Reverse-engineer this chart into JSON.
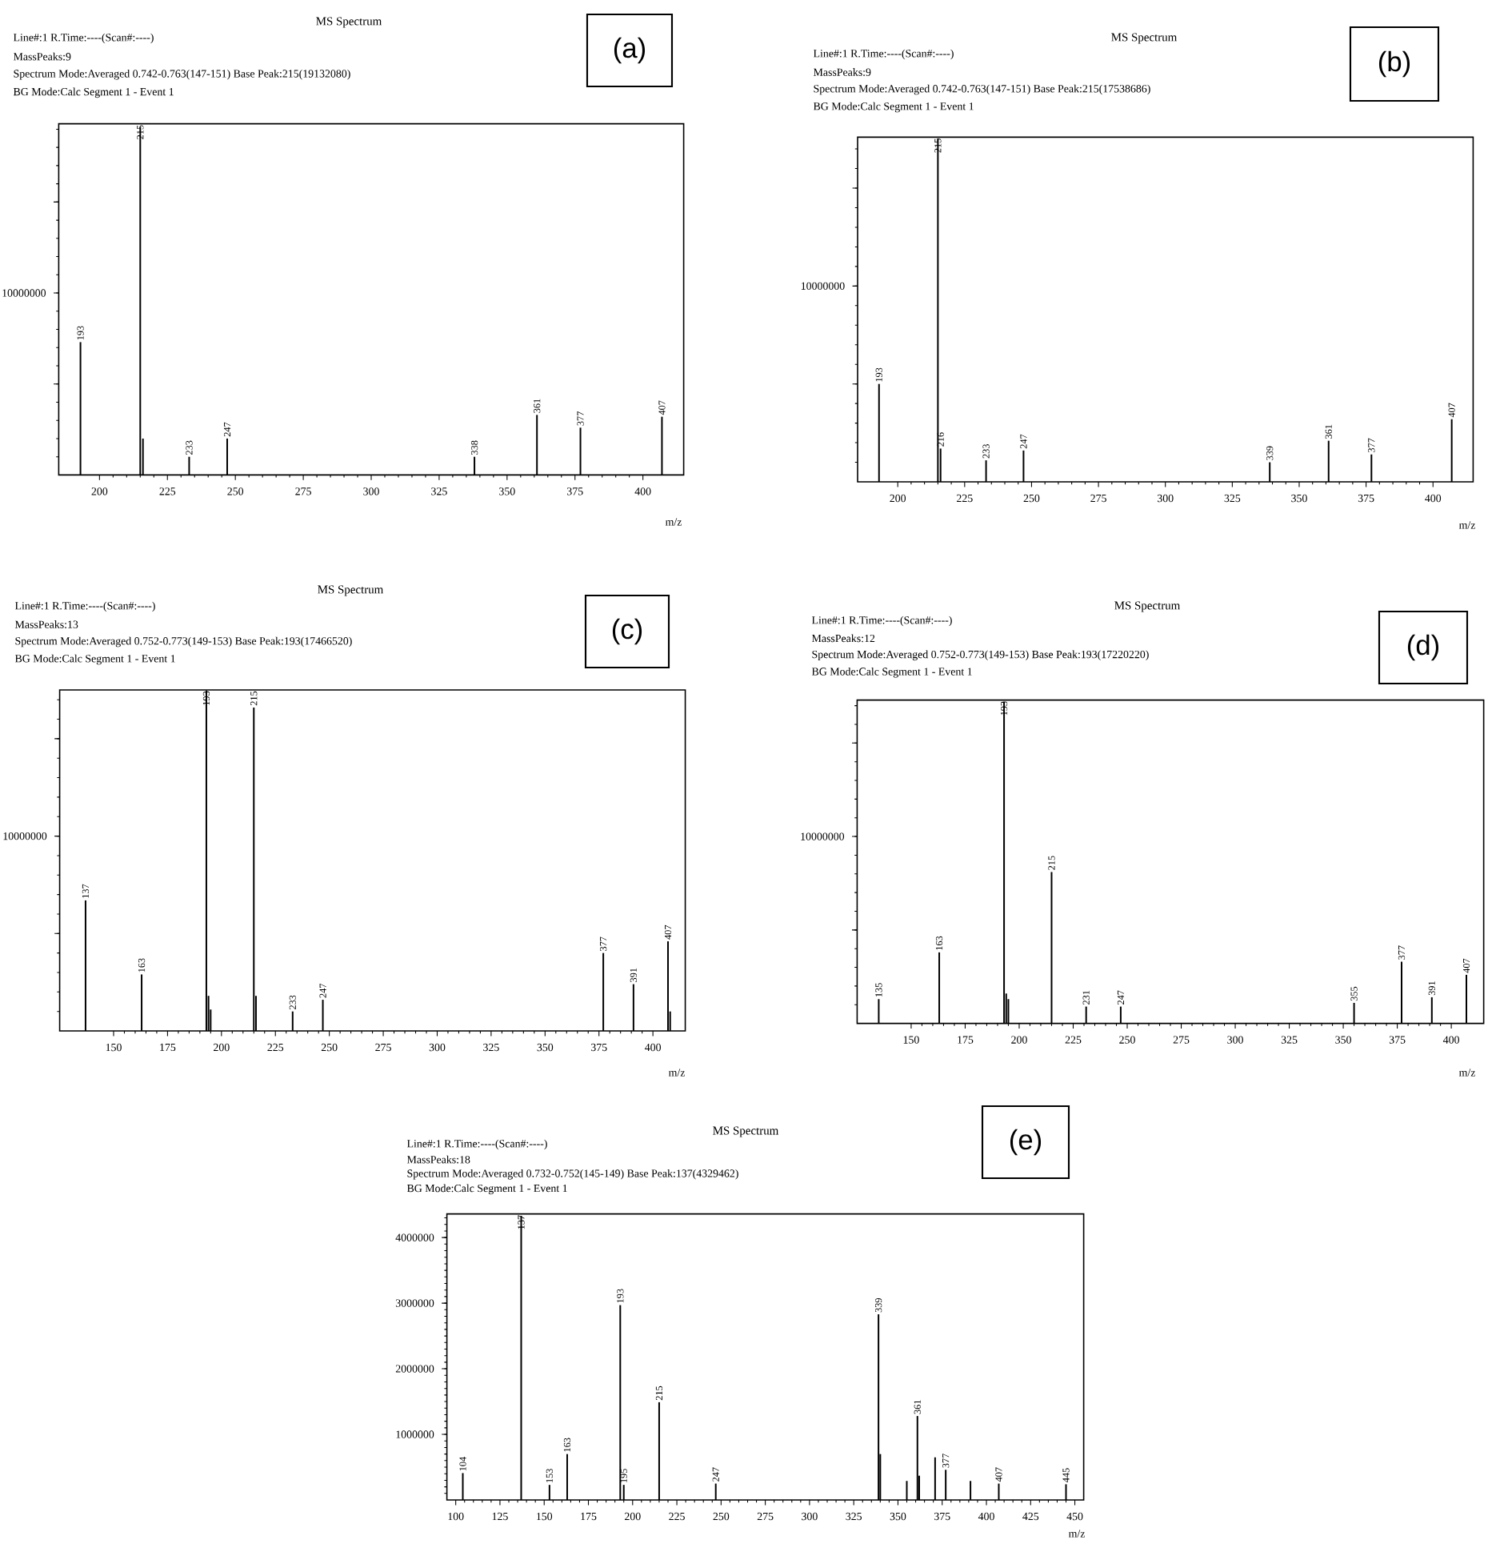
{
  "chart_data": [
    {
      "type": "bar",
      "title": "MS Spectrum",
      "xlabel": "m/z",
      "color": "#000000",
      "annotations": [
        "Line#:1 R.Time:----(Scan#:----)",
        "MassPeaks:9",
        "Spectrum Mode:Averaged 0.742-0.763(147-151) Base Peak:215(19132080)",
        "BG Mode:Calc Segment 1 - Event 1",
        "(a)",
        {
          "text": "193",
          "x": 193,
          "y": 7300000
        },
        {
          "text": "215",
          "x": 215,
          "y": 19132080
        },
        {
          "text": "233",
          "x": 233,
          "y": 1000000
        },
        {
          "text": "247",
          "x": 247,
          "y": 2000000
        },
        {
          "text": "338",
          "x": 338,
          "y": 1000000
        },
        {
          "text": "361",
          "x": 361,
          "y": 3300000
        },
        {
          "text": "377",
          "x": 377,
          "y": 2600000
        },
        {
          "text": "407",
          "x": 407,
          "y": 3200000
        }
      ],
      "x": [
        193,
        215,
        216,
        233,
        247,
        338,
        361,
        377,
        407
      ],
      "values": [
        7300000,
        19132080,
        2000000,
        1000000,
        2000000,
        1000000,
        3300000,
        2600000,
        3200000
      ],
      "xlim": [
        185,
        415
      ],
      "xticks": [
        200,
        225,
        250,
        275,
        300,
        325,
        350,
        375,
        400
      ],
      "ylim": [
        0,
        19300000
      ],
      "yticks": [
        {
          "value": 5000000,
          "label": null
        },
        {
          "value": 10000000,
          "label": "10000000"
        },
        {
          "value": 15000000,
          "label": null
        }
      ]
    },
    {
      "type": "bar",
      "title": "MS Spectrum",
      "xlabel": "m/z",
      "color": "#000000",
      "annotations": [
        "Line#:1 R.Time:----(Scan#:----)",
        "MassPeaks:9",
        "Spectrum Mode:Averaged 0.742-0.763(147-151) Base Peak:215(17538686)",
        "BG Mode:Calc Segment 1 - Event 1",
        "(b)",
        {
          "text": "193",
          "x": 193,
          "y": 5000000
        },
        {
          "text": "215",
          "x": 215,
          "y": 17538686
        },
        {
          "text": "216",
          "x": 216,
          "y": 1700000
        },
        {
          "text": "233",
          "x": 233,
          "y": 1100000
        },
        {
          "text": "247",
          "x": 247,
          "y": 1600000
        },
        {
          "text": "339",
          "x": 339,
          "y": 1000000
        },
        {
          "text": "361",
          "x": 361,
          "y": 2100000
        },
        {
          "text": "377",
          "x": 377,
          "y": 1400000
        },
        {
          "text": "407",
          "x": 407,
          "y": 3200000
        }
      ],
      "x": [
        193,
        215,
        216,
        233,
        247,
        339,
        361,
        377,
        407
      ],
      "values": [
        5000000,
        17538686,
        1700000,
        1100000,
        1600000,
        1000000,
        2100000,
        1400000,
        3200000
      ],
      "xlim": [
        185,
        415
      ],
      "xticks": [
        200,
        225,
        250,
        275,
        300,
        325,
        350,
        375,
        400
      ],
      "ylim": [
        0,
        17600000
      ],
      "yticks": [
        {
          "value": 5000000,
          "label": null
        },
        {
          "value": 10000000,
          "label": "10000000"
        },
        {
          "value": 15000000,
          "label": null
        }
      ]
    },
    {
      "type": "bar",
      "title": "MS Spectrum",
      "xlabel": "m/z",
      "color": "#000000",
      "annotations": [
        "Line#:1 R.Time:----(Scan#:----)",
        "MassPeaks:13",
        "Spectrum Mode:Averaged 0.752-0.773(149-153) Base Peak:193(17466520)",
        "BG Mode:Calc Segment 1 - Event 1",
        "(c)",
        {
          "text": "137",
          "x": 137,
          "y": 6700000
        },
        {
          "text": "163",
          "x": 163,
          "y": 2900000
        },
        {
          "text": "193",
          "x": 193,
          "y": 17466520
        },
        {
          "text": "215",
          "x": 215,
          "y": 16600000
        },
        {
          "text": "233",
          "x": 233,
          "y": 1000000
        },
        {
          "text": "247",
          "x": 247,
          "y": 1600000
        },
        {
          "text": "377",
          "x": 377,
          "y": 4000000
        },
        {
          "text": "391",
          "x": 391,
          "y": 2400000
        },
        {
          "text": "407",
          "x": 407,
          "y": 4600000
        }
      ],
      "x": [
        137,
        163,
        193,
        194,
        195,
        215,
        216,
        233,
        247,
        377,
        391,
        407,
        408
      ],
      "values": [
        6700000,
        2900000,
        17466520,
        1800000,
        1100000,
        16600000,
        1800000,
        1000000,
        1600000,
        4000000,
        2400000,
        4600000,
        1000000
      ],
      "xlim": [
        125,
        415
      ],
      "xticks": [
        150,
        175,
        200,
        225,
        250,
        275,
        300,
        325,
        350,
        375,
        400
      ],
      "ylim": [
        0,
        17500000
      ],
      "yticks": [
        {
          "value": 5000000,
          "label": null
        },
        {
          "value": 10000000,
          "label": "10000000"
        },
        {
          "value": 15000000,
          "label": null
        }
      ]
    },
    {
      "type": "bar",
      "title": "MS Spectrum",
      "xlabel": "m/z",
      "color": "#000000",
      "annotations": [
        "Line#:1 R.Time:----(Scan#:----)",
        "MassPeaks:12",
        "Spectrum Mode:Averaged 0.752-0.773(149-153) Base Peak:193(17220220)",
        "BG Mode:Calc Segment 1 - Event 1",
        "(d)",
        {
          "text": "135",
          "x": 135,
          "y": 1300000
        },
        {
          "text": "163",
          "x": 163,
          "y": 3800000
        },
        {
          "text": "193",
          "x": 193,
          "y": 17220220
        },
        {
          "text": "215",
          "x": 215,
          "y": 8100000
        },
        {
          "text": "231",
          "x": 231,
          "y": 900000
        },
        {
          "text": "247",
          "x": 247,
          "y": 900000
        },
        {
          "text": "355",
          "x": 355,
          "y": 1100000
        },
        {
          "text": "377",
          "x": 377,
          "y": 3300000
        },
        {
          "text": "391",
          "x": 391,
          "y": 1400000
        },
        {
          "text": "407",
          "x": 407,
          "y": 2600000
        }
      ],
      "x": [
        135,
        163,
        193,
        194,
        195,
        215,
        231,
        247,
        355,
        377,
        391,
        407
      ],
      "values": [
        1300000,
        3800000,
        17220220,
        1600000,
        1300000,
        8100000,
        900000,
        900000,
        1100000,
        3300000,
        1400000,
        2600000
      ],
      "xlim": [
        125,
        415
      ],
      "xticks": [
        150,
        175,
        200,
        225,
        250,
        275,
        300,
        325,
        350,
        375,
        400
      ],
      "ylim": [
        0,
        17300000
      ],
      "yticks": [
        {
          "value": 5000000,
          "label": null
        },
        {
          "value": 10000000,
          "label": "10000000"
        },
        {
          "value": 15000000,
          "label": null
        }
      ]
    },
    {
      "type": "bar",
      "title": "MS Spectrum",
      "xlabel": "m/z",
      "color": "#000000",
      "annotations": [
        "Line#:1 R.Time:----(Scan#:----)",
        "MassPeaks:18",
        "Spectrum Mode:Averaged 0.732-0.752(145-149) Base Peak:137(4329462)",
        "BG Mode:Calc Segment 1 - Event 1",
        "(e)",
        {
          "text": "104",
          "x": 104,
          "y": 410000
        },
        {
          "text": "137",
          "x": 137,
          "y": 4329462
        },
        {
          "text": "153",
          "x": 153,
          "y": 230000
        },
        {
          "text": "163",
          "x": 163,
          "y": 700000
        },
        {
          "text": "193",
          "x": 193,
          "y": 2970000
        },
        {
          "text": "195",
          "x": 195,
          "y": 230000
        },
        {
          "text": "215",
          "x": 215,
          "y": 1490000
        },
        {
          "text": "247",
          "x": 247,
          "y": 250000
        },
        {
          "text": "339",
          "x": 339,
          "y": 2830000
        },
        {
          "text": "361",
          "x": 361,
          "y": 1280000
        },
        {
          "text": "377",
          "x": 377,
          "y": 460000
        },
        {
          "text": "407",
          "x": 407,
          "y": 250000
        },
        {
          "text": "445",
          "x": 445,
          "y": 240000
        }
      ],
      "x": [
        104,
        137,
        153,
        163,
        193,
        195,
        215,
        247,
        339,
        340,
        355,
        361,
        362,
        371,
        377,
        391,
        407,
        445
      ],
      "values": [
        410000,
        4329462,
        230000,
        700000,
        2970000,
        230000,
        1490000,
        250000,
        2830000,
        700000,
        290000,
        1280000,
        370000,
        650000,
        460000,
        290000,
        250000,
        240000
      ],
      "xlim": [
        95,
        455
      ],
      "xticks": [
        100,
        125,
        150,
        175,
        200,
        225,
        250,
        275,
        300,
        325,
        350,
        375,
        400,
        425,
        450
      ],
      "ylim": [
        0,
        4360000
      ],
      "yticks": [
        1000000,
        2000000,
        3000000,
        4000000
      ]
    }
  ]
}
